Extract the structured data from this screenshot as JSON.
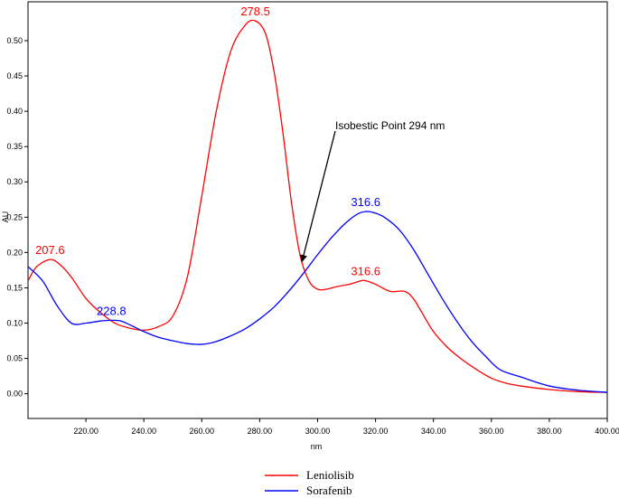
{
  "chart_data": {
    "type": "line",
    "title": "",
    "xlabel": "nm",
    "ylabel": "AU",
    "xlim": [
      200,
      400
    ],
    "ylim": [
      -0.035,
      0.555
    ],
    "x_ticks": [
      "220.00",
      "240.00",
      "260.00",
      "280.00",
      "300.00",
      "320.00",
      "340.00",
      "360.00",
      "380.00",
      "400.00"
    ],
    "y_ticks": [
      "0.00",
      "0.05",
      "0.10",
      "0.15",
      "0.20",
      "0.25",
      "0.30",
      "0.35",
      "0.40",
      "0.45",
      "0.50"
    ],
    "grid": false,
    "legend_position": "bottom-center",
    "series": [
      {
        "name": "Leniolisib",
        "color": "#ff0000",
        "x": [
          200,
          203,
          207.6,
          211,
          215,
          220,
          225,
          230,
          235,
          240,
          245,
          250,
          255,
          260,
          265,
          270,
          275,
          278.5,
          282,
          285,
          288,
          291,
          294,
          297,
          300,
          303,
          307,
          311,
          315,
          316.6,
          320,
          325,
          330,
          333,
          336,
          340,
          345,
          350,
          355,
          360,
          365,
          370,
          380,
          390,
          400
        ],
        "y": [
          0.16,
          0.18,
          0.19,
          0.183,
          0.165,
          0.135,
          0.115,
          0.1,
          0.093,
          0.09,
          0.095,
          0.11,
          0.165,
          0.28,
          0.4,
          0.485,
          0.522,
          0.528,
          0.51,
          0.455,
          0.37,
          0.27,
          0.195,
          0.16,
          0.148,
          0.148,
          0.152,
          0.155,
          0.16,
          0.16,
          0.155,
          0.145,
          0.145,
          0.135,
          0.115,
          0.088,
          0.065,
          0.048,
          0.034,
          0.022,
          0.015,
          0.011,
          0.006,
          0.003,
          0.002
        ]
      },
      {
        "name": "Sorafenib",
        "color": "#0000ff",
        "x": [
          200,
          205,
          210,
          215,
          220,
          225,
          228.8,
          232,
          236,
          240,
          245,
          250,
          255,
          260,
          265,
          270,
          275,
          280,
          285,
          290,
          295,
          300,
          305,
          310,
          314,
          316.6,
          319,
          323,
          328,
          333,
          338,
          343,
          348,
          353,
          358,
          363,
          370,
          380,
          390,
          400
        ],
        "y": [
          0.18,
          0.16,
          0.125,
          0.1,
          0.1,
          0.103,
          0.104,
          0.103,
          0.096,
          0.088,
          0.08,
          0.075,
          0.071,
          0.07,
          0.074,
          0.082,
          0.092,
          0.106,
          0.123,
          0.145,
          0.17,
          0.197,
          0.222,
          0.243,
          0.255,
          0.258,
          0.257,
          0.25,
          0.233,
          0.205,
          0.17,
          0.135,
          0.103,
          0.075,
          0.053,
          0.034,
          0.024,
          0.011,
          0.005,
          0.002
        ]
      }
    ],
    "peak_labels": [
      {
        "text": "278.5",
        "x": 278.5,
        "y": 0.528,
        "series": 0
      },
      {
        "text": "207.6",
        "x": 207.6,
        "y": 0.19,
        "series": 0
      },
      {
        "text": "316.6",
        "x": 316.6,
        "y": 0.16,
        "series": 0
      },
      {
        "text": "316.6",
        "x": 316.6,
        "y": 0.258,
        "series": 1
      },
      {
        "text": "228.8",
        "x": 228.8,
        "y": 0.104,
        "series": 1
      }
    ],
    "annotation": {
      "text": "Isobestic Point 294 nm",
      "point_x": 294,
      "point_y": 0.19
    }
  }
}
